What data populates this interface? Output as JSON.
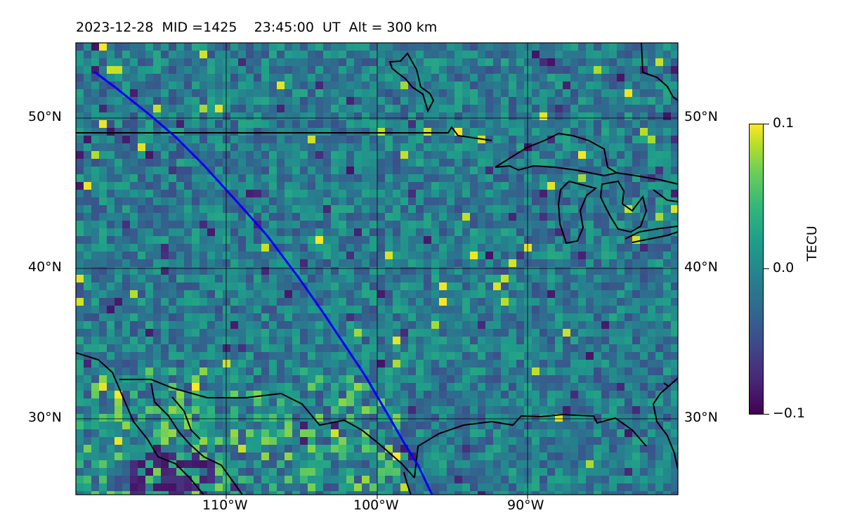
{
  "title": {
    "date": "2023-12-28",
    "mid": "MID =1425",
    "time": "23:45:00  UT",
    "alt": "Alt = 300 km"
  },
  "map": {
    "lat_labels": [
      "50°N",
      "40°N",
      "30°N"
    ],
    "lon_labels": [
      "110°W",
      "100°W",
      "90°W"
    ],
    "lat_range": [
      25,
      55
    ],
    "lon_range": [
      -120,
      -80
    ],
    "track_color": "#0000ff",
    "coast_color": "#000000"
  },
  "colorbar": {
    "label": "TECU",
    "ticks": [
      "0.1",
      "0.0",
      "−0.1"
    ],
    "range": [
      -0.1,
      0.1
    ],
    "colormap": "viridis"
  }
}
